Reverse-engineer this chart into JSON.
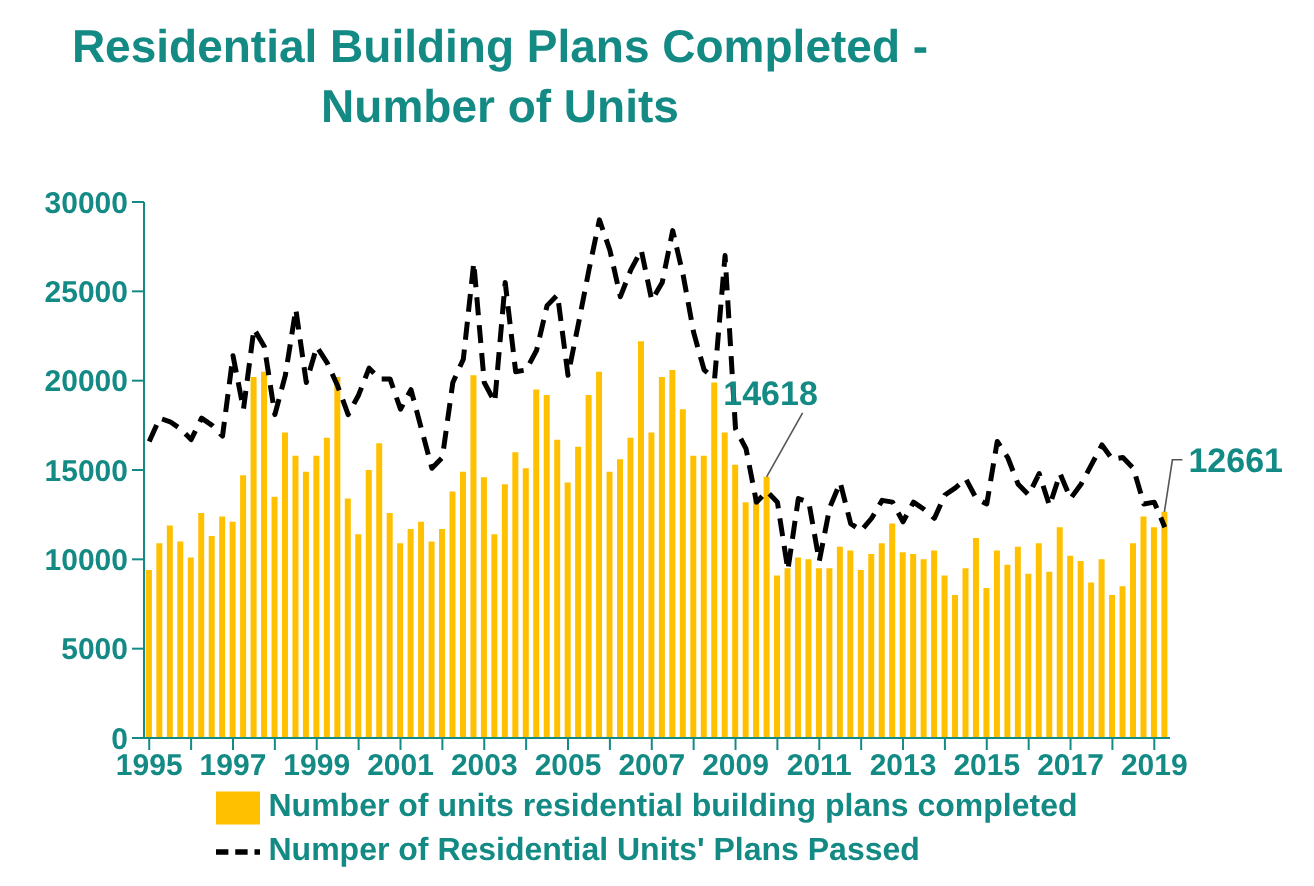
{
  "chart_data": {
    "type": "bar",
    "title": "Residential Building Plans Completed - Number of Units",
    "categories": [
      "1995",
      null,
      null,
      null,
      null,
      null,
      null,
      null,
      "1997",
      null,
      null,
      null,
      null,
      null,
      null,
      null,
      "1999",
      null,
      null,
      null,
      null,
      null,
      null,
      null,
      "2001",
      null,
      null,
      null,
      null,
      null,
      null,
      null,
      "2003",
      null,
      null,
      null,
      null,
      null,
      null,
      null,
      "2005",
      null,
      null,
      null,
      null,
      null,
      null,
      null,
      "2007",
      null,
      null,
      null,
      null,
      null,
      null,
      null,
      "2009",
      null,
      null,
      null,
      null,
      null,
      null,
      null,
      "2011",
      null,
      null,
      null,
      null,
      null,
      null,
      null,
      "2013",
      null,
      null,
      null,
      null,
      null,
      null,
      null,
      "2015",
      null,
      null,
      null,
      null,
      null,
      null,
      null,
      "2017",
      null,
      null,
      null,
      null,
      null,
      null,
      null,
      "2019",
      null
    ],
    "series": [
      {
        "name": "Number of units residential building plans completed",
        "color": "#ffc000",
        "values": [
          9400,
          10900,
          11900,
          11000,
          10100,
          12600,
          11300,
          12400,
          12100,
          14700,
          20200,
          20500,
          13500,
          17100,
          15800,
          14900,
          15800,
          16800,
          20200,
          13400,
          11400,
          15000,
          16500,
          12600,
          10900,
          11700,
          12100,
          11000,
          11700,
          13800,
          14900,
          20300,
          14600,
          11400,
          14200,
          16000,
          15100,
          19500,
          19200,
          16700,
          14300,
          16300,
          19200,
          20500,
          14900,
          15600,
          16800,
          22200,
          17100,
          20200,
          20600,
          18400,
          15800,
          15800,
          19900,
          17100,
          15300,
          13200,
          13500,
          14618,
          9100,
          9500,
          10100,
          10000,
          9500,
          9500,
          10700,
          10500,
          9400,
          10300,
          10900,
          12000,
          10400,
          10300,
          10000,
          10500,
          9100,
          8000,
          9500,
          11200,
          8400,
          10500,
          9700,
          10700,
          9200,
          10900,
          9300,
          11800,
          10200,
          9900,
          8700,
          10000,
          8000,
          8500,
          10900,
          12400,
          11800,
          12661
        ],
        "value_labels": [
          null,
          null,
          null,
          null,
          null,
          null,
          null,
          null,
          null,
          null,
          null,
          null,
          null,
          null,
          null,
          null,
          null,
          null,
          null,
          null,
          null,
          null,
          null,
          null,
          null,
          null,
          null,
          null,
          null,
          null,
          null,
          null,
          null,
          null,
          null,
          null,
          null,
          null,
          null,
          null,
          null,
          null,
          null,
          null,
          null,
          null,
          null,
          null,
          null,
          null,
          null,
          null,
          null,
          null,
          null,
          null,
          null,
          null,
          null,
          "14618",
          null,
          null,
          null,
          null,
          null,
          null,
          null,
          null,
          null,
          null,
          null,
          null,
          null,
          null,
          null,
          null,
          null,
          null,
          null,
          null,
          null,
          null,
          null,
          null,
          null,
          null,
          null,
          null,
          null,
          null,
          null,
          null,
          null,
          null,
          null,
          null,
          null,
          "12661"
        ]
      },
      {
        "name": "Numper of Residential Units' Plans Passed",
        "type": "line",
        "color": "#000000",
        "line_style": "dashed",
        "values": [
          16600,
          17900,
          17700,
          17300,
          16700,
          17900,
          17500,
          16900,
          21400,
          18400,
          22900,
          21900,
          18100,
          20300,
          24000,
          19900,
          21900,
          21000,
          19700,
          18100,
          19200,
          20700,
          20100,
          20100,
          18400,
          19500,
          17300,
          15100,
          15700,
          19900,
          21200,
          26600,
          19900,
          18800,
          25500,
          20500,
          20600,
          21700,
          24200,
          24800,
          20300,
          23200,
          26200,
          29000,
          27300,
          24700,
          26200,
          27300,
          24500,
          25500,
          28400,
          25900,
          22700,
          20600,
          20100,
          27000,
          17300,
          16200,
          13200,
          13800,
          13200,
          9400,
          13400,
          13200,
          9900,
          12900,
          14300,
          12000,
          11600,
          12300,
          13300,
          13200,
          12100,
          13200,
          12800,
          12300,
          13600,
          14000,
          14500,
          13400,
          13100,
          16600,
          15700,
          14200,
          13600,
          14800,
          13000,
          14800,
          13400,
          14200,
          15300,
          16400,
          15600,
          15700,
          15100,
          13100,
          13200,
          11800
        ]
      }
    ],
    "ylim": [
      0,
      30000
    ],
    "yticks": [
      0,
      5000,
      10000,
      15000,
      20000,
      25000,
      30000
    ],
    "grid": false,
    "legend": "bottom",
    "marker": "none"
  }
}
